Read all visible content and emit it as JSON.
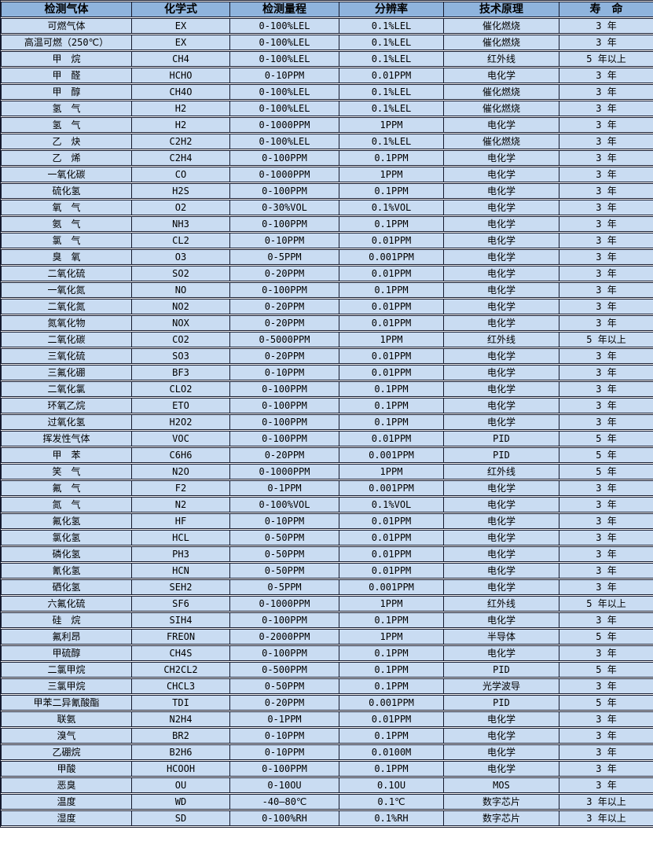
{
  "colors": {
    "header_bg": "#8fb4dd",
    "row_bg": "#c9dcf2",
    "border": "#151a2e",
    "text": "#000000",
    "gap": "#ffffff"
  },
  "table": {
    "headers": [
      "检测气体",
      "化学式",
      "检测量程",
      "分辨率",
      "技术原理",
      "寿　命"
    ],
    "rows": [
      [
        "可燃气体",
        "EX",
        "0-100%LEL",
        "0.1%LEL",
        "催化燃烧",
        "3 年"
      ],
      [
        "高温可燃（250℃）",
        "EX",
        "0-100%LEL",
        "0.1%LEL",
        "催化燃烧",
        "3 年"
      ],
      [
        "甲　烷",
        "CH4",
        "0-100%LEL",
        "0.1%LEL",
        "红外线",
        "5 年以上"
      ],
      [
        "甲　醛",
        "HCHO",
        "0-10PPM",
        "0.01PPM",
        "电化学",
        "3 年"
      ],
      [
        "甲　醇",
        "CH4O",
        "0-100%LEL",
        "0.1%LEL",
        "催化燃烧",
        "3 年"
      ],
      [
        "氢　气",
        "H2",
        "0-100%LEL",
        "0.1%LEL",
        "催化燃烧",
        "3 年"
      ],
      [
        "氢　气",
        "H2",
        "0-1000PPM",
        "1PPM",
        "电化学",
        "3 年"
      ],
      [
        "乙　炔",
        "C2H2",
        "0-100%LEL",
        "0.1%LEL",
        "催化燃烧",
        "3 年"
      ],
      [
        "乙　烯",
        "C2H4",
        "0-100PPM",
        "0.1PPM",
        "电化学",
        "3 年"
      ],
      [
        "一氧化碳",
        "CO",
        "0-1000PPM",
        "1PPM",
        "电化学",
        "3 年"
      ],
      [
        "硫化氢",
        "H2S",
        "0-100PPM",
        "0.1PPM",
        "电化学",
        "3 年"
      ],
      [
        "氧　气",
        "O2",
        "0-30%VOL",
        "0.1%VOL",
        "电化学",
        "3 年"
      ],
      [
        "氨　气",
        "NH3",
        "0-100PPM",
        "0.1PPM",
        "电化学",
        "3 年"
      ],
      [
        "氯　气",
        "CL2",
        "0-10PPM",
        "0.01PPM",
        "电化学",
        "3 年"
      ],
      [
        "臭　氧",
        "O3",
        "0-5PPM",
        "0.001PPM",
        "电化学",
        "3 年"
      ],
      [
        "二氧化硫",
        "SO2",
        "0-20PPM",
        "0.01PPM",
        "电化学",
        "3 年"
      ],
      [
        "一氧化氮",
        "NO",
        "0-100PPM",
        "0.1PPM",
        "电化学",
        "3 年"
      ],
      [
        "二氧化氮",
        "NO2",
        "0-20PPM",
        "0.01PPM",
        "电化学",
        "3 年"
      ],
      [
        "氮氧化物",
        "NOX",
        "0-20PPM",
        "0.01PPM",
        "电化学",
        "3 年"
      ],
      [
        "二氧化碳",
        "CO2",
        "0-5000PPM",
        "1PPM",
        "红外线",
        "5 年以上"
      ],
      [
        "三氧化硫",
        "SO3",
        "0-20PPM",
        "0.01PPM",
        "电化学",
        "3 年"
      ],
      [
        "三氟化硼",
        "BF3",
        "0-10PPM",
        "0.01PPM",
        "电化学",
        "3 年"
      ],
      [
        "二氧化氯",
        "CLO2",
        "0-100PPM",
        "0.1PPM",
        "电化学",
        "3 年"
      ],
      [
        "环氧乙烷",
        "ETO",
        "0-100PPM",
        "0.1PPM",
        "电化学",
        "3 年"
      ],
      [
        "过氧化氢",
        "H2O2",
        "0-100PPM",
        "0.1PPM",
        "电化学",
        "3 年"
      ],
      [
        "挥发性气体",
        "VOC",
        "0-100PPM",
        "0.01PPM",
        "PID",
        "5 年"
      ],
      [
        "甲　苯",
        "C6H6",
        "0-20PPM",
        "0.001PPM",
        "PID",
        "5 年"
      ],
      [
        "笑　气",
        "N2O",
        "0-1000PPM",
        "1PPM",
        "红外线",
        "5 年"
      ],
      [
        "氟　气",
        "F2",
        "0-1PPM",
        "0.001PPM",
        "电化学",
        "3 年"
      ],
      [
        "氮　气",
        "N2",
        "0-100%VOL",
        "0.1%VOL",
        "电化学",
        "3 年"
      ],
      [
        "氟化氢",
        "HF",
        "0-10PPM",
        "0.01PPM",
        "电化学",
        "3 年"
      ],
      [
        "氯化氢",
        "HCL",
        "0-50PPM",
        "0.01PPM",
        "电化学",
        "3 年"
      ],
      [
        "磷化氢",
        "PH3",
        "0-50PPM",
        "0.01PPM",
        "电化学",
        "3 年"
      ],
      [
        "氰化氢",
        "HCN",
        "0-50PPM",
        "0.01PPM",
        "电化学",
        "3 年"
      ],
      [
        "硒化氢",
        "SEH2",
        "0-5PPM",
        "0.001PPM",
        "电化学",
        "3 年"
      ],
      [
        "六氟化硫",
        "SF6",
        "0-1000PPM",
        "1PPM",
        "红外线",
        "5 年以上"
      ],
      [
        "硅　烷",
        "SIH4",
        "0-100PPM",
        "0.1PPM",
        "电化学",
        "3 年"
      ],
      [
        "氟利昂",
        "FREON",
        "0-2000PPM",
        "1PPM",
        "半导体",
        "5 年"
      ],
      [
        "甲硫醇",
        "CH4S",
        "0-100PPM",
        "0.1PPM",
        "电化学",
        "3 年"
      ],
      [
        "二氯甲烷",
        "CH2CL2",
        "0-500PPM",
        "0.1PPM",
        "PID",
        "5 年"
      ],
      [
        "三氯甲烷",
        "CHCL3",
        "0-50PPM",
        "0.1PPM",
        "光学波导",
        "3 年"
      ],
      [
        "甲苯二异氰酸酯",
        "TDI",
        "0-20PPM",
        "0.001PPM",
        "PID",
        "5 年"
      ],
      [
        "联氨",
        "N2H4",
        "0-1PPM",
        "0.01PPM",
        "电化学",
        "3 年"
      ],
      [
        "溴气",
        "BR2",
        "0-10PPM",
        "0.1PPM",
        "电化学",
        "3 年"
      ],
      [
        "乙硼烷",
        "B2H6",
        "0-10PPM",
        "0.0100M",
        "电化学",
        "3 年"
      ],
      [
        "甲酸",
        "HCOOH",
        "0-100PPM",
        "0.1PPM",
        "电化学",
        "3 年"
      ],
      [
        "恶臭",
        "OU",
        "0-10OU",
        "0.1OU",
        "MOS",
        "3 年"
      ],
      [
        "温度",
        "WD",
        "-40—80℃",
        "0.1℃",
        "数字芯片",
        "3 年以上"
      ],
      [
        "湿度",
        "SD",
        "0-100%RH",
        "0.1%RH",
        "数字芯片",
        "3 年以上"
      ]
    ]
  }
}
